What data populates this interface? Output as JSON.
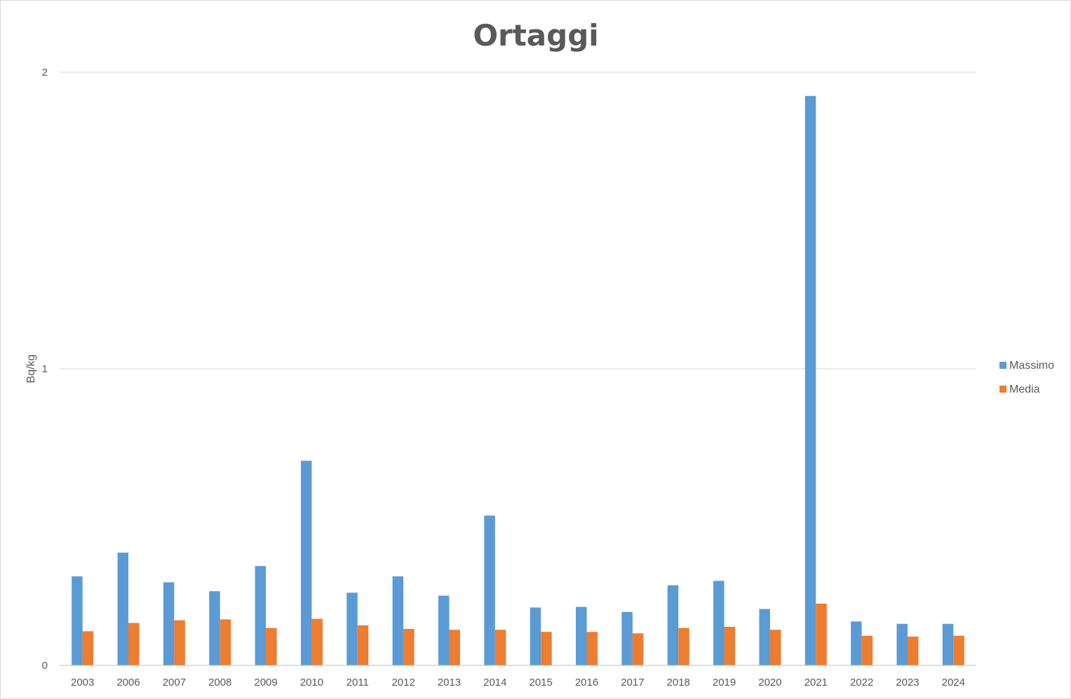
{
  "chart_data": {
    "type": "bar",
    "title": "Ortaggi",
    "xlabel": "",
    "ylabel": "Bq/kg",
    "ylim": [
      0,
      2
    ],
    "yticks": [
      0,
      1,
      2
    ],
    "grid": true,
    "legend_position": "right",
    "categories": [
      "2003",
      "2006",
      "2007",
      "2008",
      "2009",
      "2010",
      "2011",
      "2012",
      "2013",
      "2014",
      "2015",
      "2016",
      "2017",
      "2018",
      "2019",
      "2020",
      "2021",
      "2022",
      "2023",
      "2024"
    ],
    "series": [
      {
        "name": "Massimo",
        "color": "#5b9bd5",
        "values": [
          0.3,
          0.38,
          0.28,
          0.25,
          0.335,
          0.69,
          0.245,
          0.3,
          0.235,
          0.505,
          0.195,
          0.197,
          0.18,
          0.27,
          0.285,
          0.19,
          1.92,
          0.148,
          0.14,
          0.14
        ]
      },
      {
        "name": "Media",
        "color": "#ed7d31",
        "values": [
          0.115,
          0.143,
          0.152,
          0.155,
          0.126,
          0.157,
          0.135,
          0.123,
          0.12,
          0.12,
          0.113,
          0.113,
          0.108,
          0.126,
          0.13,
          0.12,
          0.208,
          0.1,
          0.097,
          0.1
        ]
      }
    ]
  }
}
